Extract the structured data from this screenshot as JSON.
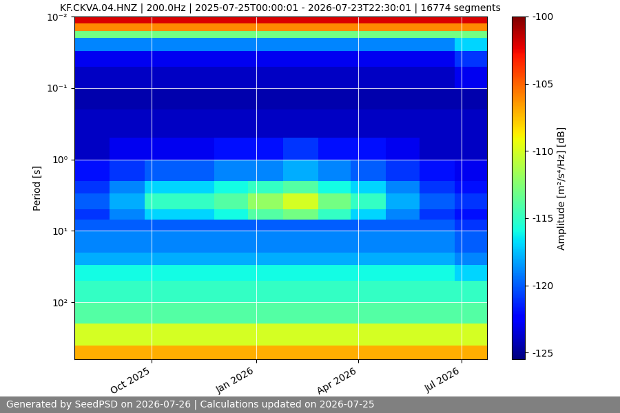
{
  "chart_data": {
    "type": "heatmap",
    "title": "KF.CKVA.04.HNZ | 200.0Hz | 2025-07-25T00:00:01 - 2026-07-23T22:30:01 | 16774 segments",
    "ylabel": "Period [s]",
    "footer": "Generated by SeedPSD on 2026-07-26 | Calculations updated on 2026-07-25",
    "log": "y",
    "color": "jet",
    "x_edges": [
      "2025-07-25",
      "2025-08-25",
      "2025-09-25",
      "2025-10-25",
      "2025-11-25",
      "2025-12-25",
      "2026-01-25",
      "2026-02-25",
      "2026-03-25",
      "2026-04-25",
      "2026-05-25",
      "2026-06-25",
      "2026-07-23"
    ],
    "y_edges": [
      0.01,
      0.0125,
      0.016,
      0.02,
      0.03,
      0.05,
      0.1,
      0.2,
      0.5,
      1,
      2,
      3,
      5,
      7,
      10,
      20,
      30,
      50,
      100,
      200,
      400,
      630
    ],
    "cells": [
      [
        -102,
        -102,
        -102,
        -102,
        -102,
        -102,
        -102,
        -102,
        -102,
        -102,
        -102,
        -102
      ],
      [
        -106,
        -106,
        -106,
        -106,
        -106,
        -106,
        -106,
        -106,
        -106,
        -106,
        -106,
        -106
      ],
      [
        -113,
        -113,
        -113,
        -113,
        -113,
        -113,
        -113,
        -113,
        -113,
        -113,
        -113,
        -113
      ],
      [
        -119,
        -119,
        -119,
        -119,
        -119,
        -119,
        -119,
        -119,
        -119,
        -119,
        -119,
        -117
      ],
      [
        -123,
        -123,
        -123,
        -123,
        -123,
        -123,
        -123,
        -123,
        -123,
        -123,
        -123,
        -121
      ],
      [
        -124,
        -124,
        -124,
        -124,
        -124,
        -124,
        -124,
        -124,
        -124,
        -124,
        -124,
        -123
      ],
      [
        -124.5,
        -124.5,
        -124.5,
        -124.5,
        -124.5,
        -124.5,
        -124.5,
        -124.5,
        -124.5,
        -124.5,
        -124.5,
        -124.5
      ],
      [
        -124,
        -124,
        -124,
        -124,
        -124,
        -124,
        -124,
        -124,
        -124,
        -124,
        -124,
        -124
      ],
      [
        -124,
        -123,
        -123,
        -123,
        -122,
        -122,
        -121,
        -122,
        -122,
        -123,
        -124,
        -124
      ],
      [
        -122,
        -121,
        -120,
        -120,
        -119,
        -119,
        -118,
        -119,
        -120,
        -121,
        -122,
        -123
      ],
      [
        -121,
        -119,
        -117,
        -117,
        -116,
        -115,
        -114,
        -116,
        -117,
        -119,
        -121,
        -122
      ],
      [
        -120,
        -118,
        -115,
        -115,
        -114,
        -112,
        -110,
        -113,
        -115,
        -118,
        -120,
        -121
      ],
      [
        -121,
        -119,
        -117,
        -117,
        -116,
        -114,
        -113,
        -115,
        -117,
        -119,
        -121,
        -122
      ],
      [
        -120,
        -120,
        -120,
        -120,
        -120,
        -120,
        -120,
        -120,
        -120,
        -120,
        -120,
        -121
      ],
      [
        -119,
        -119,
        -119,
        -119,
        -119,
        -119,
        -119,
        -119,
        -119,
        -119,
        -119,
        -120
      ],
      [
        -118,
        -118,
        -118,
        -118,
        -118,
        -118,
        -118,
        -118,
        -118,
        -118,
        -118,
        -119
      ],
      [
        -116,
        -116,
        -116,
        -116,
        -116,
        -116,
        -116,
        -116,
        -116,
        -116,
        -116,
        -117
      ],
      [
        -115,
        -115,
        -115,
        -115,
        -115,
        -115,
        -115,
        -115,
        -115,
        -115,
        -115,
        -115
      ],
      [
        -114,
        -114,
        -114,
        -114,
        -114,
        -114,
        -114,
        -114,
        -114,
        -114,
        -114,
        -114
      ],
      [
        -110,
        -110,
        -110,
        -110,
        -110,
        -110,
        -110,
        -110,
        -110,
        -110,
        -110,
        -110
      ],
      [
        -107,
        -107,
        -107,
        -107,
        -107,
        -107,
        -107,
        -107,
        -107,
        -107,
        -107,
        -107
      ]
    ],
    "xlim": [
      "2025-07-25",
      "2026-07-23"
    ],
    "xticks": [
      {
        "value": "2025-10-01",
        "label": "Oct 2025"
      },
      {
        "value": "2026-01-01",
        "label": "Jan 2026"
      },
      {
        "value": "2026-04-01",
        "label": "Apr 2026"
      },
      {
        "value": "2026-07-01",
        "label": "Jul 2026"
      }
    ],
    "ylim": [
      630,
      0.01
    ],
    "yticks": [
      {
        "value": 0.01,
        "label": "10⁻²"
      },
      {
        "value": 0.1,
        "label": "10⁻¹"
      },
      {
        "value": 1,
        "label": "10⁰"
      },
      {
        "value": 10,
        "label": "10¹"
      },
      {
        "value": 100,
        "label": "10²"
      }
    ],
    "grid": true,
    "colorbar": {
      "label": "Amplitude [m²/s⁴/Hz] [dB]",
      "lim": [
        -125.5,
        -100
      ],
      "ticks": [
        -125,
        -120,
        -115,
        -110,
        -105,
        -100
      ]
    }
  }
}
